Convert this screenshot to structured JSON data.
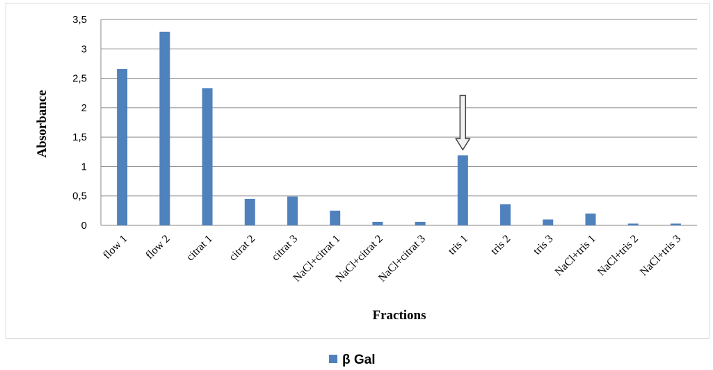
{
  "chart_data": {
    "type": "bar",
    "categories": [
      "flow 1",
      "flow 2",
      "citrat 1",
      "citrat 2",
      "citrat 3",
      "NaCl+citrat 1",
      "NaCl+citrat 2",
      "NaCl+citrat 3",
      "tris 1",
      "tris 2",
      "tris 3",
      "NaCl+tris 1",
      "NaCl+tris 2",
      "NaCl+tris 3"
    ],
    "series": [
      {
        "name": "β Gal",
        "values": [
          2.66,
          3.29,
          2.33,
          0.45,
          0.49,
          0.25,
          0.06,
          0.06,
          1.19,
          0.36,
          0.1,
          0.2,
          0.03,
          0.03
        ],
        "color": "#4f81bd"
      }
    ],
    "xlabel": "Fractions",
    "ylabel": "Absorbance",
    "ylim": [
      0,
      3.5
    ],
    "yticks": [
      0,
      0.5,
      1,
      1.5,
      2,
      2.5,
      3,
      3.5
    ],
    "ytick_labels": [
      "0",
      "0,5",
      "1",
      "1,5",
      "2",
      "2,5",
      "3",
      "3,5"
    ],
    "grid": true,
    "legend": "bottom",
    "annotation": {
      "type": "down-arrow",
      "target": "tris 1"
    }
  }
}
